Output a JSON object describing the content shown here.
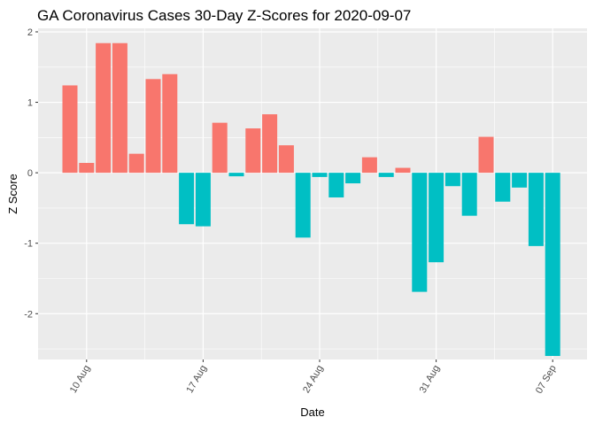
{
  "chart_data": {
    "type": "bar",
    "title": "GA Coronavirus Cases 30-Day Z-Scores for 2020-09-07",
    "xlabel": "Date",
    "ylabel": "Z Score",
    "ylim": [
      -2.65,
      2.05
    ],
    "yticks": [
      -2,
      -1,
      0,
      1,
      2
    ],
    "ytick_labels": [
      "-2",
      "-1",
      "0",
      "1",
      "2"
    ],
    "xticks": [
      {
        "label": "10 Aug",
        "index": 1
      },
      {
        "label": "17 Aug",
        "index": 8
      },
      {
        "label": "24 Aug",
        "index": 15
      },
      {
        "label": "31 Aug",
        "index": 22
      },
      {
        "label": "07 Sep",
        "index": 29
      }
    ],
    "grid": true,
    "legend": "none",
    "positive_color": "#F8766D",
    "negative_color": "#00BFC4",
    "categories": [
      "2020-08-09",
      "2020-08-10",
      "2020-08-11",
      "2020-08-12",
      "2020-08-13",
      "2020-08-14",
      "2020-08-15",
      "2020-08-16",
      "2020-08-17",
      "2020-08-18",
      "2020-08-19",
      "2020-08-20",
      "2020-08-21",
      "2020-08-22",
      "2020-08-23",
      "2020-08-24",
      "2020-08-25",
      "2020-08-26",
      "2020-08-27",
      "2020-08-28",
      "2020-08-29",
      "2020-08-30",
      "2020-08-31",
      "2020-09-01",
      "2020-09-02",
      "2020-09-03",
      "2020-09-04",
      "2020-09-05",
      "2020-09-06",
      "2020-09-07"
    ],
    "values": [
      1.24,
      0.14,
      1.84,
      1.84,
      0.27,
      1.33,
      1.4,
      -0.73,
      -0.76,
      0.71,
      -0.05,
      0.63,
      0.83,
      0.39,
      -0.92,
      -0.06,
      -0.35,
      -0.15,
      0.22,
      -0.06,
      0.07,
      -1.69,
      -1.27,
      -0.19,
      -0.61,
      0.51,
      -0.41,
      -0.21,
      -1.04,
      -2.6
    ]
  }
}
